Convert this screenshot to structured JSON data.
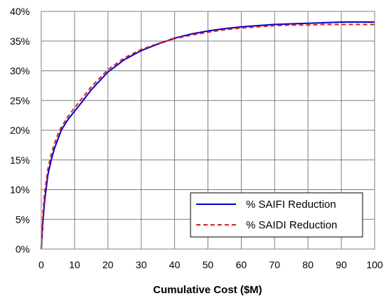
{
  "chart_data": {
    "type": "line",
    "title": "",
    "xlabel": "Cumulative Cost ($M)",
    "ylabel": "",
    "xlim": [
      0,
      100
    ],
    "ylim": [
      0,
      40
    ],
    "x_ticks": [
      0,
      10,
      20,
      30,
      40,
      50,
      60,
      70,
      80,
      90,
      100
    ],
    "x_tick_labels": [
      "0",
      "10",
      "20",
      "30",
      "40",
      "50",
      "60",
      "70",
      "80",
      "90",
      "100"
    ],
    "y_ticks": [
      0,
      5,
      10,
      15,
      20,
      25,
      30,
      35,
      40
    ],
    "y_tick_labels": [
      "0%",
      "5%",
      "10%",
      "15%",
      "20%",
      "25%",
      "30%",
      "35%",
      "40%"
    ],
    "grid": true,
    "legend_position": "bottom-right",
    "series": [
      {
        "name": "% SAIFI Reduction",
        "color": "#0000CC",
        "dash": "solid",
        "x": [
          0,
          0.5,
          1,
          2,
          3,
          4,
          5,
          6,
          8,
          10,
          12,
          15,
          20,
          25,
          30,
          35,
          40,
          45,
          50,
          55,
          60,
          65,
          70,
          75,
          80,
          85,
          90,
          95,
          100
        ],
        "y": [
          0,
          4.5,
          8,
          12.5,
          15,
          17,
          18.5,
          20,
          21.8,
          23.2,
          24.6,
          26.8,
          29.8,
          31.9,
          33.4,
          34.5,
          35.5,
          36.2,
          36.7,
          37.1,
          37.4,
          37.6,
          37.8,
          37.9,
          38.0,
          38.1,
          38.2,
          38.2,
          38.2
        ]
      },
      {
        "name": "% SAIDI Reduction",
        "color": "#E0201E",
        "dash": "dashed",
        "x": [
          0,
          0.5,
          1,
          2,
          3,
          4,
          5,
          6,
          8,
          10,
          12,
          15,
          20,
          25,
          30,
          35,
          40,
          45,
          50,
          55,
          60,
          65,
          70,
          75,
          80,
          85,
          90,
          95,
          100
        ],
        "y": [
          0,
          6,
          9.5,
          13.5,
          16,
          17.8,
          19.3,
          20.5,
          22.3,
          23.8,
          25.2,
          27.3,
          30.2,
          32.2,
          33.6,
          34.6,
          35.4,
          36.0,
          36.5,
          36.9,
          37.2,
          37.4,
          37.6,
          37.7,
          37.7,
          37.8,
          37.8,
          37.8,
          37.8
        ]
      }
    ]
  }
}
